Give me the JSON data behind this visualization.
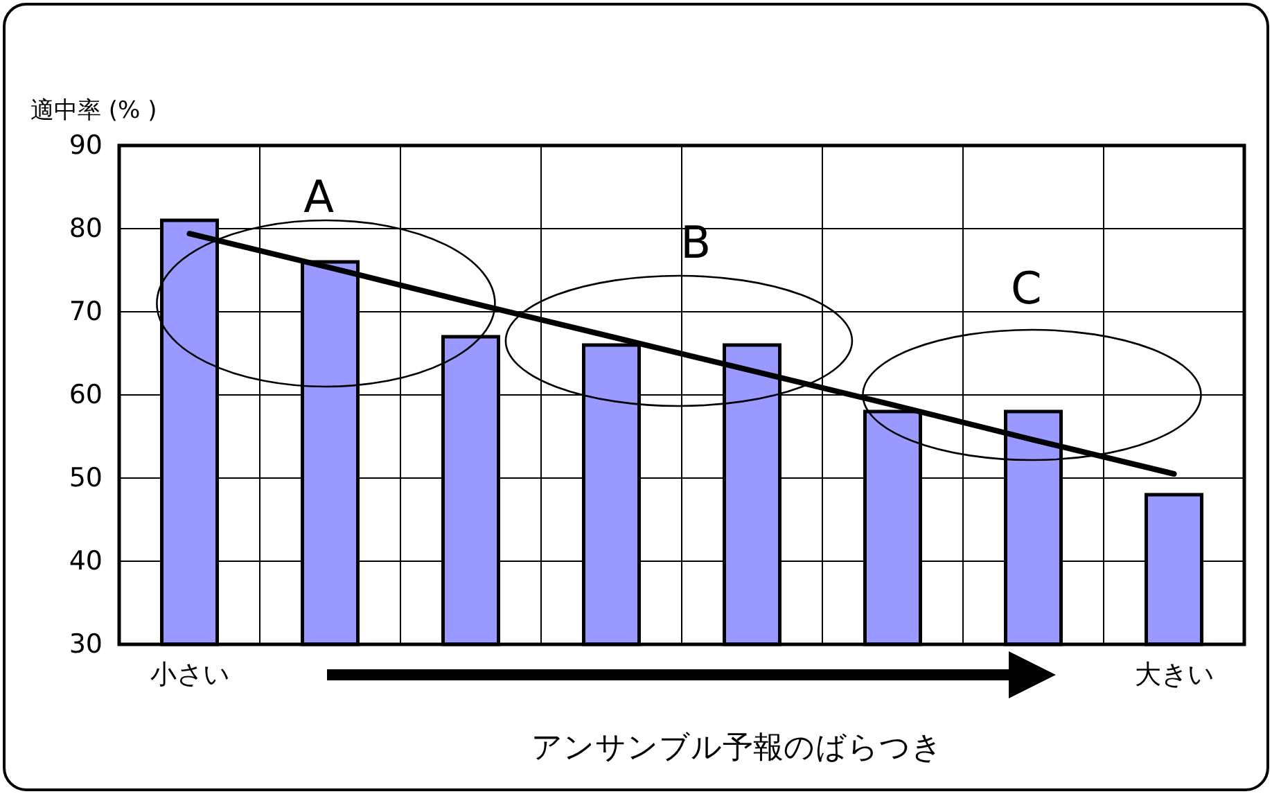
{
  "chart_data": {
    "type": "bar",
    "ylabel": "適中率 (% )",
    "xlabel": "アンサンブル予報のばらつき",
    "categories": [
      "小さい",
      null,
      null,
      null,
      null,
      null,
      null,
      "大きい"
    ],
    "series": [
      {
        "color": "#9999ff",
        "values": [
          81,
          76,
          67,
          66,
          66,
          58,
          58,
          48
        ]
      },
      {
        "type": "line",
        "color": "#000000",
        "values": [
          79.4,
          75.3,
          71.1,
          67.0,
          62.9,
          58.8,
          54.6,
          50.5
        ]
      }
    ],
    "ylim": [
      30,
      90
    ],
    "yticks": [
      30,
      40,
      50,
      60,
      70,
      80,
      90
    ],
    "grid": true,
    "annotations": [
      "A",
      "B",
      "C"
    ]
  }
}
